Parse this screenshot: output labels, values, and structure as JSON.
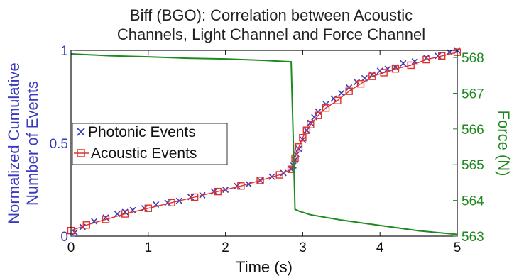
{
  "chart_data": {
    "type": "line",
    "title": [
      "Biff (BGO): Correlation between Acoustic",
      "Channels, Light Channel and Force Channel"
    ],
    "xlabel": "Time (s)",
    "ylabel_left": [
      "Normalized Cumulative",
      "Number of Events"
    ],
    "ylabel_right": "Force (N)",
    "xlim": [
      0,
      5
    ],
    "ylim_left": [
      0,
      1
    ],
    "ylim_right": [
      563,
      568.2
    ],
    "x_ticks": [
      "0",
      "1",
      "2",
      "3",
      "4",
      "5"
    ],
    "y_left_ticks": [
      "0",
      "0.5",
      "1"
    ],
    "y_right_ticks": [
      "563",
      "564",
      "565",
      "566",
      "567",
      "568"
    ],
    "legend": {
      "position": "left-middle",
      "entries": [
        "Photonic Events",
        "Acoustic Events"
      ]
    },
    "grid": false,
    "colors": {
      "photonic": "#3b3bbf",
      "acoustic": "#e0302a",
      "force": "#1f8a1f",
      "left_axis": "#3b3bbf",
      "right_axis": "#1f8a1f"
    },
    "series": [
      {
        "name": "Photonic Events",
        "axis": "left",
        "marker": "x",
        "x": [
          0.05,
          0.15,
          0.3,
          0.45,
          0.6,
          0.7,
          0.8,
          0.95,
          1.1,
          1.25,
          1.4,
          1.55,
          1.7,
          1.85,
          2.0,
          2.15,
          2.3,
          2.45,
          2.6,
          2.75,
          2.85,
          2.88,
          2.9,
          2.92,
          2.95,
          3.0,
          3.05,
          3.1,
          3.15,
          3.2,
          3.3,
          3.4,
          3.5,
          3.6,
          3.7,
          3.8,
          3.9,
          4.0,
          4.1,
          4.2,
          4.3,
          4.45,
          4.6,
          4.75,
          4.9,
          5.0
        ],
        "y": [
          0.02,
          0.05,
          0.08,
          0.1,
          0.12,
          0.13,
          0.14,
          0.15,
          0.17,
          0.18,
          0.19,
          0.21,
          0.22,
          0.24,
          0.25,
          0.27,
          0.28,
          0.3,
          0.32,
          0.34,
          0.36,
          0.38,
          0.41,
          0.44,
          0.47,
          0.52,
          0.57,
          0.61,
          0.64,
          0.67,
          0.71,
          0.74,
          0.77,
          0.8,
          0.83,
          0.85,
          0.87,
          0.89,
          0.9,
          0.91,
          0.93,
          0.94,
          0.96,
          0.97,
          0.99,
          1.0
        ]
      },
      {
        "name": "Acoustic Events",
        "axis": "left",
        "marker": "square",
        "x": [
          0.0,
          0.2,
          0.45,
          0.7,
          1.0,
          1.3,
          1.6,
          1.9,
          2.2,
          2.45,
          2.7,
          2.85,
          2.9,
          2.95,
          3.0,
          3.05,
          3.1,
          3.2,
          3.3,
          3.45,
          3.6,
          3.75,
          3.9,
          4.05,
          4.2,
          4.4,
          4.6,
          4.8,
          5.0
        ],
        "y": [
          0.03,
          0.06,
          0.09,
          0.12,
          0.15,
          0.18,
          0.21,
          0.24,
          0.27,
          0.3,
          0.33,
          0.36,
          0.42,
          0.48,
          0.53,
          0.57,
          0.6,
          0.65,
          0.69,
          0.73,
          0.78,
          0.82,
          0.86,
          0.88,
          0.9,
          0.92,
          0.95,
          0.97,
          0.99
        ]
      },
      {
        "name": "Force",
        "axis": "right",
        "x": [
          0.0,
          0.5,
          1.0,
          1.5,
          2.0,
          2.5,
          2.85,
          2.88,
          2.9,
          2.95,
          3.1,
          3.5,
          4.0,
          4.5,
          5.0
        ],
        "y": [
          568.1,
          568.05,
          568.02,
          567.98,
          567.96,
          567.92,
          567.88,
          565.5,
          563.75,
          563.7,
          563.6,
          563.45,
          563.3,
          563.15,
          563.05
        ]
      }
    ]
  }
}
